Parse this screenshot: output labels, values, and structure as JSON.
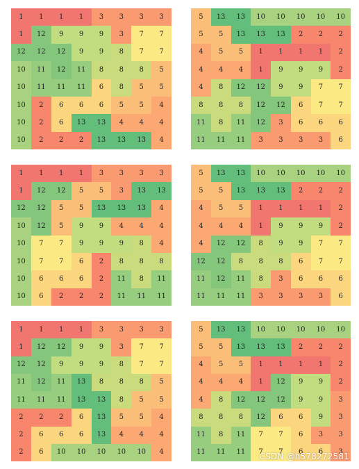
{
  "colors": {
    "1": "#f1766f",
    "2": "#f8866c",
    "3": "#fa9a70",
    "4": "#fba873",
    "5": "#fbbe79",
    "6": "#fbd67e",
    "7": "#fbe983",
    "8": "#cadb7e",
    "9": "#c1dd80",
    "10": "#a8d27f",
    "11": "#96cd7f",
    "12": "#84c67c",
    "13": "#63be7b"
  },
  "panels": [
    {
      "grid": [
        [
          "1",
          "1",
          "1",
          "1",
          "3",
          "3",
          "3",
          "3"
        ],
        [
          "1",
          "12",
          "9",
          "9",
          "9",
          "3",
          "7",
          "7"
        ],
        [
          "12",
          "12",
          "12",
          "9",
          "9",
          "8",
          "7",
          "7"
        ],
        [
          "10",
          "11",
          "12",
          "11",
          "8",
          "8",
          "8",
          "5"
        ],
        [
          "10",
          "11",
          "11",
          "11",
          "6",
          "8",
          "5",
          "5"
        ],
        [
          "10",
          "2",
          "6",
          "6",
          "6",
          "5",
          "5",
          "4"
        ],
        [
          "10",
          "2",
          "6",
          "13",
          "13",
          "4",
          "4",
          "4"
        ],
        [
          "10",
          "2",
          "2",
          "2",
          "13",
          "13",
          "13",
          "4"
        ]
      ]
    },
    {
      "grid": [
        [
          "5",
          "13",
          "13",
          "10",
          "10",
          "10",
          "10",
          "10"
        ],
        [
          "5",
          "5",
          "13",
          "13",
          "13",
          "2",
          "2",
          "2"
        ],
        [
          "4",
          "5",
          "5",
          "1",
          "1",
          "1",
          "1",
          "2"
        ],
        [
          "4",
          "4",
          "4",
          "1",
          "9",
          "9",
          "9",
          "2"
        ],
        [
          "4",
          "8",
          "12",
          "12",
          "9",
          "9",
          "7",
          "7"
        ],
        [
          "8",
          "8",
          "8",
          "12",
          "12",
          "6",
          "7",
          "7"
        ],
        [
          "11",
          "8",
          "11",
          "12",
          "3",
          "6",
          "6",
          "6"
        ],
        [
          "11",
          "11",
          "11",
          "3",
          "3",
          "3",
          "3",
          "6"
        ]
      ]
    },
    {
      "grid": [
        [
          "1",
          "1",
          "1",
          "1",
          "3",
          "3",
          "3",
          "3"
        ],
        [
          "1",
          "12",
          "12",
          "5",
          "5",
          "3",
          "13",
          "13"
        ],
        [
          "12",
          "12",
          "5",
          "5",
          "13",
          "13",
          "13",
          "4"
        ],
        [
          "10",
          "12",
          "5",
          "9",
          "9",
          "4",
          "4",
          "4"
        ],
        [
          "10",
          "7",
          "7",
          "9",
          "9",
          "9",
          "8",
          "4"
        ],
        [
          "10",
          "7",
          "7",
          "6",
          "2",
          "8",
          "8",
          "8"
        ],
        [
          "10",
          "6",
          "6",
          "6",
          "2",
          "11",
          "8",
          "11"
        ],
        [
          "10",
          "6",
          "2",
          "2",
          "2",
          "11",
          "11",
          "11"
        ]
      ]
    },
    {
      "grid": [
        [
          "5",
          "13",
          "13",
          "10",
          "10",
          "10",
          "10",
          "10"
        ],
        [
          "5",
          "5",
          "13",
          "13",
          "13",
          "2",
          "2",
          "2"
        ],
        [
          "4",
          "5",
          "5",
          "1",
          "1",
          "1",
          "1",
          "2"
        ],
        [
          "4",
          "4",
          "4",
          "1",
          "9",
          "9",
          "9",
          "2"
        ],
        [
          "4",
          "12",
          "12",
          "8",
          "9",
          "9",
          "7",
          "7"
        ],
        [
          "12",
          "12",
          "8",
          "8",
          "8",
          "6",
          "7",
          "7"
        ],
        [
          "11",
          "12",
          "11",
          "8",
          "3",
          "6",
          "6",
          "6"
        ],
        [
          "11",
          "11",
          "11",
          "3",
          "3",
          "3",
          "3",
          "6"
        ]
      ]
    },
    {
      "grid": [
        [
          "1",
          "1",
          "1",
          "1",
          "3",
          "3",
          "3",
          "3"
        ],
        [
          "1",
          "12",
          "12",
          "9",
          "9",
          "3",
          "7",
          "7"
        ],
        [
          "12",
          "12",
          "9",
          "9",
          "9",
          "8",
          "7",
          "7"
        ],
        [
          "11",
          "12",
          "11",
          "13",
          "8",
          "8",
          "8",
          "5"
        ],
        [
          "11",
          "11",
          "11",
          "13",
          "13",
          "8",
          "5",
          "5"
        ],
        [
          "2",
          "2",
          "2",
          "6",
          "13",
          "5",
          "5",
          "4"
        ],
        [
          "2",
          "6",
          "6",
          "6",
          "13",
          "4",
          "4",
          "4"
        ],
        [
          "2",
          "6",
          "10",
          "10",
          "10",
          "10",
          "10",
          "4"
        ]
      ]
    },
    {
      "grid": [
        [
          "5",
          "13",
          "13",
          "10",
          "10",
          "10",
          "10",
          "10"
        ],
        [
          "5",
          "5",
          "13",
          "13",
          "13",
          "2",
          "2",
          "2"
        ],
        [
          "4",
          "5",
          "5",
          "1",
          "1",
          "1",
          "1",
          "2"
        ],
        [
          "4",
          "4",
          "4",
          "1",
          "12",
          "9",
          "9",
          "2"
        ],
        [
          "4",
          "8",
          "12",
          "12",
          "12",
          "9",
          "9",
          "3"
        ],
        [
          "8",
          "8",
          "8",
          "12",
          "6",
          "6",
          "9",
          "3"
        ],
        [
          "11",
          "8",
          "11",
          "7",
          "7",
          "6",
          "3",
          "3"
        ],
        [
          "11",
          "11",
          "11",
          "7",
          "7",
          "6",
          "6",
          "3"
        ]
      ]
    }
  ],
  "watermark": "CSDN @h578272581"
}
